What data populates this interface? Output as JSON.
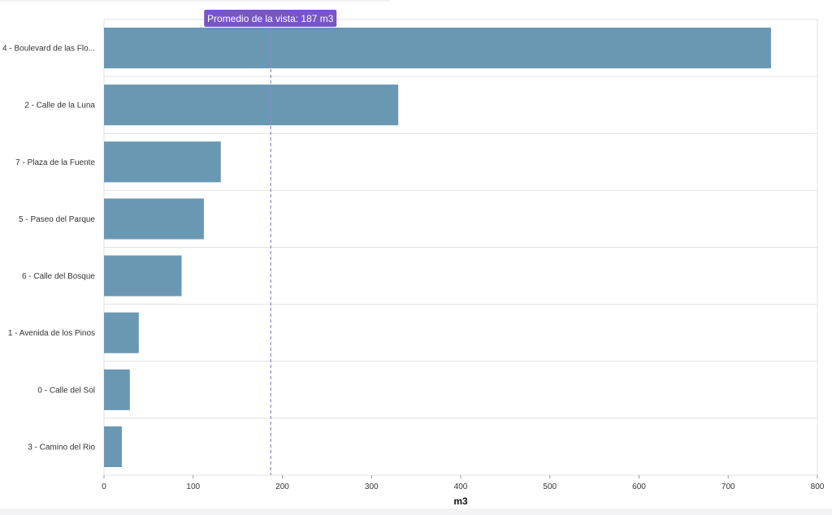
{
  "chart_data": {
    "type": "bar",
    "orientation": "horizontal",
    "categories": [
      "4 - Boulevard de las Flo...",
      "2 - Calle de la Luna",
      "7 - Plaza de la Fuente",
      "5 - Paseo del Parque",
      "6 - Calle del Bosque",
      "1 - Avenida de los Pinos",
      "0 - Calle del Sol",
      "3 - Camino del Rio"
    ],
    "values": [
      748,
      330,
      131,
      112,
      87,
      39,
      29,
      20
    ],
    "xlabel": "m3",
    "ylabel": "",
    "xlim": [
      0,
      800
    ],
    "xticks": [
      0,
      100,
      200,
      300,
      400,
      500,
      600,
      700,
      800
    ],
    "grid": true,
    "average": {
      "value": 187,
      "label": "Promedio de la vista: 187 m3"
    },
    "colors": {
      "bar": "#6a98b2",
      "average_line": "#8f86cc",
      "average_badge": "#7755c8",
      "gridline": "#e2e2e6"
    }
  }
}
